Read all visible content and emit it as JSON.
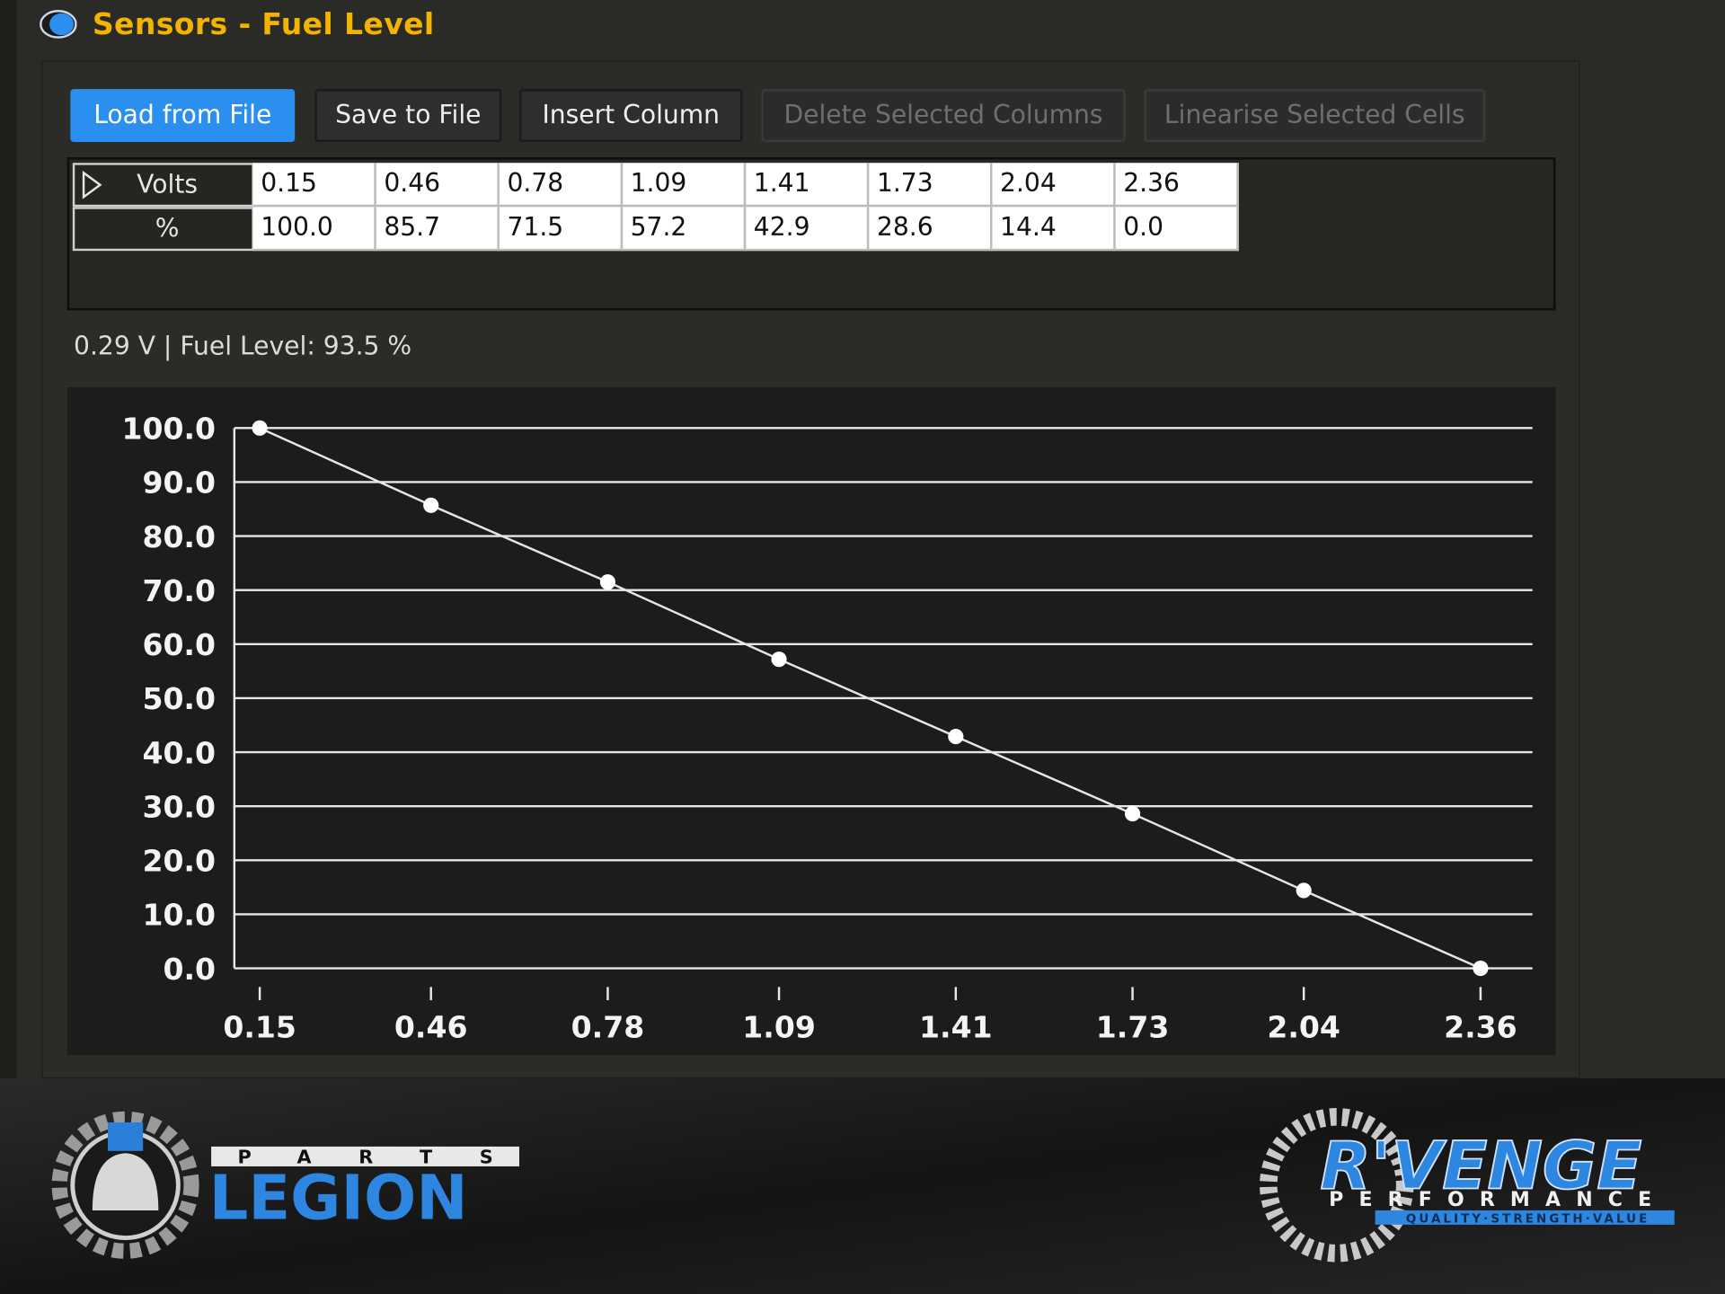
{
  "header": {
    "title": "Sensors - Fuel Level"
  },
  "toolbar": {
    "buttons": [
      {
        "label": "Load from File",
        "state": "primary"
      },
      {
        "label": "Save to File",
        "state": "normal"
      },
      {
        "label": "Insert Column",
        "state": "normal"
      },
      {
        "label": "Delete Selected Columns",
        "state": "disabled"
      },
      {
        "label": "Linearise Selected Cells",
        "state": "disabled"
      }
    ]
  },
  "table": {
    "row_headers": [
      "Volts",
      "%"
    ],
    "rows": [
      [
        "0.15",
        "0.46",
        "0.78",
        "1.09",
        "1.41",
        "1.73",
        "2.04",
        "2.36"
      ],
      [
        "100.0",
        "85.7",
        "71.5",
        "57.2",
        "42.9",
        "28.6",
        "14.4",
        "0.0"
      ]
    ]
  },
  "status": "0.29 V | Fuel Level: 93.5 %",
  "chart_data": {
    "type": "line",
    "x": [
      0.15,
      0.46,
      0.78,
      1.09,
      1.41,
      1.73,
      2.04,
      2.36
    ],
    "values": [
      100.0,
      85.7,
      71.5,
      57.2,
      42.9,
      28.6,
      14.4,
      0.0
    ],
    "color": "#e6e6e6",
    "xlim": [
      0.104,
      2.454
    ],
    "xticks": [
      0.15,
      0.46,
      0.78,
      1.09,
      1.41,
      1.73,
      2.04,
      2.36
    ],
    "ylim": [
      0,
      100
    ],
    "yticks": [
      {
        "value": 0,
        "label": "0.0"
      },
      {
        "value": 10,
        "label": "10.0"
      },
      {
        "value": 20,
        "label": "20.0"
      },
      {
        "value": 30,
        "label": "30.0"
      },
      {
        "value": 40,
        "label": "40.0"
      },
      {
        "value": 50,
        "label": "50.0"
      },
      {
        "value": 60,
        "label": "60.0"
      },
      {
        "value": 70,
        "label": "70.0"
      },
      {
        "value": 80,
        "label": "80.0"
      },
      {
        "value": 90,
        "label": "90.0"
      },
      {
        "value": 100,
        "label": "100.0"
      }
    ],
    "grid": true
  },
  "footer": {
    "left_logo": {
      "top": "PARTS",
      "main": "LEGION"
    },
    "right_logo": {
      "main": "R'VENGE",
      "sub": "PERFORMANCE",
      "tagline": "QUALITY·STRENGTH·VALUE"
    }
  }
}
